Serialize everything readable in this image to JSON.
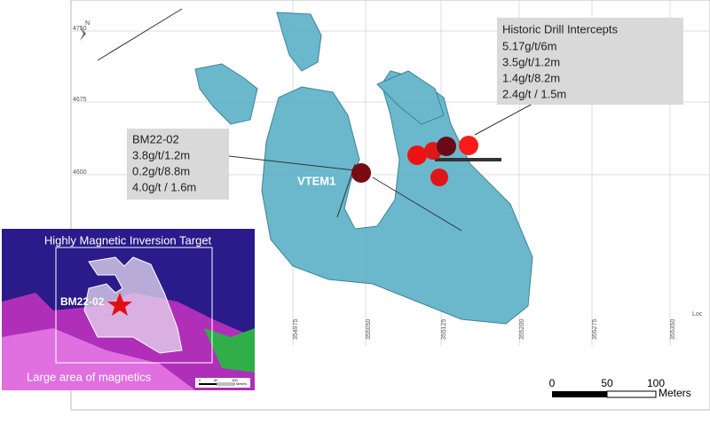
{
  "view": {
    "grid_labels_y": [
      4750,
      4675,
      4600
    ],
    "grid_labels_x": [
      354975,
      355050,
      355125,
      355200,
      355275,
      355350
    ],
    "corner_label": "Loc",
    "north": "N",
    "target_label": "VTEM1",
    "scale": {
      "ticks": [
        "0",
        "50",
        "100"
      ],
      "unit": "Meters"
    }
  },
  "callouts": [
    {
      "title": "Historic Drill Intercepts",
      "lines": [
        "5.17g/t/6m",
        "3.5g/t/1.2m",
        "1.4g/t/8.2m",
        "2.4g/t / 1.5m"
      ]
    },
    {
      "title": "BM22-02",
      "lines": [
        "3.8g/t/1.2m",
        "0.2g/t/8.8m",
        "4.0g/t / 1.6m"
      ]
    }
  ],
  "inset": {
    "title": "Highly Magnetic Inversion Target",
    "hole": "BM22-02",
    "caption": "Large area of magnetics",
    "scale": {
      "ticks": [
        "0",
        "50",
        "100"
      ],
      "unit": "Meters"
    }
  }
}
